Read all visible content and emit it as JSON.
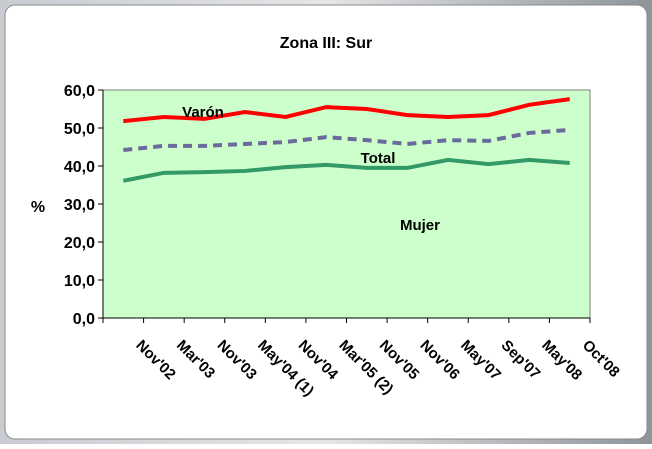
{
  "chart_data": {
    "type": "line",
    "title": "Zona III: Sur",
    "y_label": "%",
    "categories": [
      "Nov'02",
      "Mar'03",
      "Nov'03",
      "May'04 (1)",
      "Nov'04",
      "Mar'05 (2)",
      "Nov'05",
      "Nov'06",
      "May'07",
      "Sep'07",
      "May'08",
      "Oct'08"
    ],
    "series": [
      {
        "name": "Varón",
        "color": "#ff0000",
        "dashed": false,
        "values": [
          51.8,
          52.9,
          52.4,
          54.2,
          52.9,
          55.5,
          55.0,
          53.4,
          52.9,
          53.4,
          56.1,
          57.6
        ]
      },
      {
        "name": "Total",
        "color": "#6b6b9b",
        "dashed": true,
        "values": [
          44.2,
          45.3,
          45.3,
          45.8,
          46.3,
          47.6,
          46.8,
          45.8,
          46.8,
          46.6,
          48.7,
          49.5
        ]
      },
      {
        "name": "Mujer",
        "color": "#339966",
        "dashed": false,
        "values": [
          36.1,
          38.2,
          38.4,
          38.7,
          39.7,
          40.3,
          39.5,
          39.5,
          41.6,
          40.5,
          41.6,
          40.8
        ]
      }
    ],
    "ylim": [
      0,
      60
    ],
    "yticks": [
      {
        "value": 0,
        "label": "0,0"
      },
      {
        "value": 10,
        "label": "10,0"
      },
      {
        "value": 20,
        "label": "20,0"
      },
      {
        "value": 30,
        "label": "30,0"
      },
      {
        "value": 40,
        "label": "40,0"
      },
      {
        "value": 50,
        "label": "50,0"
      },
      {
        "value": 60,
        "label": "60,0"
      }
    ],
    "plot_background": "#ccffcc"
  }
}
